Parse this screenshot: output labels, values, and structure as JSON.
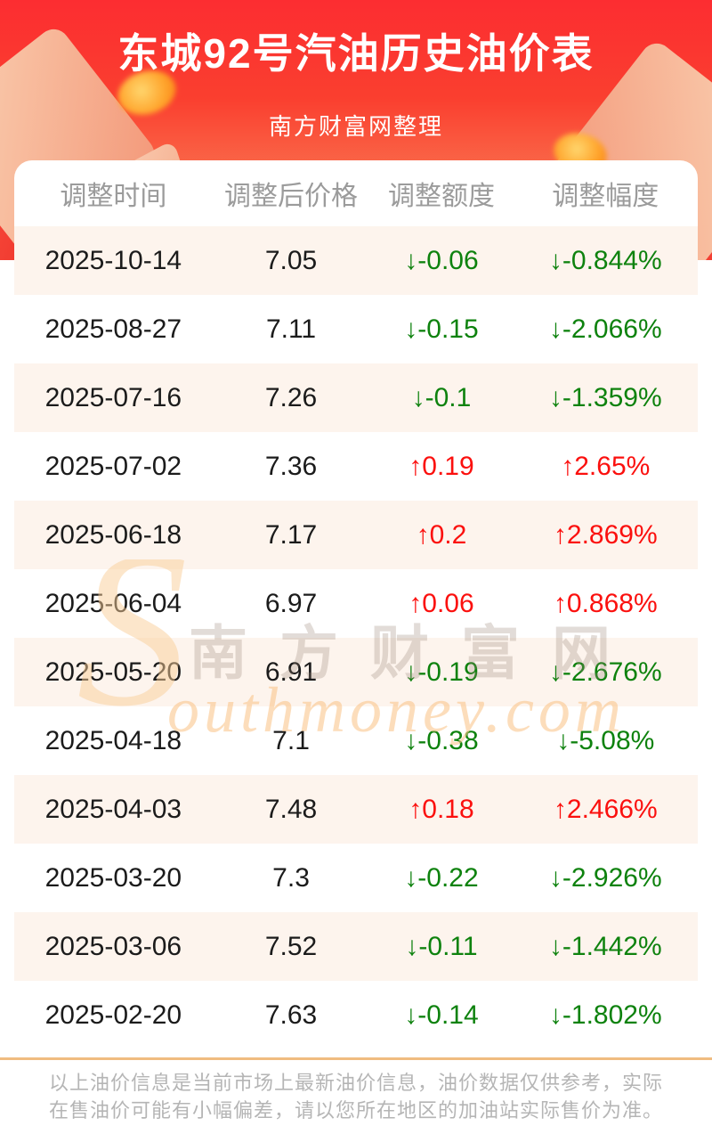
{
  "header": {
    "title": "东城92号汽油历史油价表",
    "subtitle": "南方财富网整理"
  },
  "table": {
    "columns": [
      "调整时间",
      "调整后价格",
      "调整额度",
      "调整幅度"
    ],
    "rows": [
      {
        "date": "2025-10-14",
        "price": "7.05",
        "change": "↓-0.06",
        "percent": "↓-0.844%",
        "dir": "down"
      },
      {
        "date": "2025-08-27",
        "price": "7.11",
        "change": "↓-0.15",
        "percent": "↓-2.066%",
        "dir": "down"
      },
      {
        "date": "2025-07-16",
        "price": "7.26",
        "change": "↓-0.1",
        "percent": "↓-1.359%",
        "dir": "down"
      },
      {
        "date": "2025-07-02",
        "price": "7.36",
        "change": "↑0.19",
        "percent": "↑2.65%",
        "dir": "up"
      },
      {
        "date": "2025-06-18",
        "price": "7.17",
        "change": "↑0.2",
        "percent": "↑2.869%",
        "dir": "up"
      },
      {
        "date": "2025-06-04",
        "price": "6.97",
        "change": "↑0.06",
        "percent": "↑0.868%",
        "dir": "up"
      },
      {
        "date": "2025-05-20",
        "price": "6.91",
        "change": "↓-0.19",
        "percent": "↓-2.676%",
        "dir": "down"
      },
      {
        "date": "2025-04-18",
        "price": "7.1",
        "change": "↓-0.38",
        "percent": "↓-5.08%",
        "dir": "down"
      },
      {
        "date": "2025-04-03",
        "price": "7.48",
        "change": "↑0.18",
        "percent": "↑2.466%",
        "dir": "up"
      },
      {
        "date": "2025-03-20",
        "price": "7.3",
        "change": "↓-0.22",
        "percent": "↓-2.926%",
        "dir": "down"
      },
      {
        "date": "2025-03-06",
        "price": "7.52",
        "change": "↓-0.11",
        "percent": "↓-1.442%",
        "dir": "down"
      },
      {
        "date": "2025-02-20",
        "price": "7.63",
        "change": "↓-0.14",
        "percent": "↓-1.802%",
        "dir": "down"
      }
    ]
  },
  "watermark": {
    "initial": "S",
    "cn": "南方财富网",
    "en": "outhmoney.com"
  },
  "footer": {
    "line1": "以上油价信息是当前市场上最新油价信息，油价数据仅供参考，实际",
    "line2": "在售油价可能有小幅偏差，请以您所在地区的加油站实际售价为准。"
  },
  "colors": {
    "hero_top": "#fc2d31",
    "hero_bottom": "#f9a07d",
    "stripe": "#fdf4ed",
    "up_red": "#fb100e",
    "down_green": "#0e820e",
    "header_text": "#9b9b9b",
    "body_text": "#1b1b1b",
    "divider": "#f0bc80",
    "footer_text": "#b5b5b5"
  },
  "chart_data": {
    "type": "table",
    "title": "东城92号汽油历史油价表",
    "subtitle": "南方财富网整理",
    "columns": [
      "调整时间",
      "调整后价格",
      "调整额度",
      "调整幅度"
    ],
    "rows": [
      [
        "2025-10-14",
        7.05,
        -0.06,
        "-0.844%"
      ],
      [
        "2025-08-27",
        7.11,
        -0.15,
        "-2.066%"
      ],
      [
        "2025-07-16",
        7.26,
        -0.1,
        "-1.359%"
      ],
      [
        "2025-07-02",
        7.36,
        0.19,
        "2.65%"
      ],
      [
        "2025-06-18",
        7.17,
        0.2,
        "2.869%"
      ],
      [
        "2025-06-04",
        6.97,
        0.06,
        "0.868%"
      ],
      [
        "2025-05-20",
        6.91,
        -0.19,
        "-2.676%"
      ],
      [
        "2025-04-18",
        7.1,
        -0.38,
        "-5.08%"
      ],
      [
        "2025-04-03",
        7.48,
        0.18,
        "2.466%"
      ],
      [
        "2025-03-20",
        7.3,
        -0.22,
        "-2.926%"
      ],
      [
        "2025-03-06",
        7.52,
        -0.11,
        "-1.442%"
      ],
      [
        "2025-02-20",
        7.63,
        -0.14,
        "-1.802%"
      ]
    ]
  }
}
